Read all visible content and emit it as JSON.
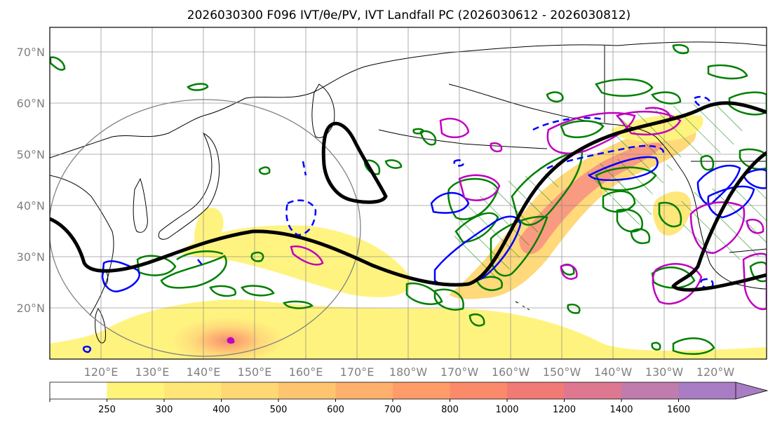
{
  "figure": {
    "title": "2026030300 F096 IVT/θe/PV, IVT Landfall PC (2026030612 - 2026030812)",
    "lat_labels": [
      "70°N",
      "60°N",
      "50°N",
      "40°N",
      "30°N",
      "20°N"
    ],
    "lat_values": [
      70,
      60,
      50,
      40,
      30,
      20
    ],
    "lon_labels": [
      "120°E",
      "130°E",
      "140°E",
      "150°E",
      "160°E",
      "170°E",
      "180°W",
      "170°W",
      "160°W",
      "150°W",
      "140°W",
      "130°W",
      "120°W"
    ],
    "lon_values": [
      120,
      130,
      140,
      150,
      160,
      170,
      180,
      190,
      200,
      210,
      220,
      230,
      240
    ],
    "map_extent": {
      "lon_min": 110,
      "lon_max": 250,
      "lat_min": 10,
      "lat_max": 75
    }
  },
  "colorbar": {
    "ticks": [
      "250",
      "300",
      "400",
      "500",
      "600",
      "700",
      "800",
      "1000",
      "1200",
      "1400",
      "1600"
    ],
    "colors": [
      "#ffffff",
      "#fff37a",
      "#ffe676",
      "#ffd873",
      "#ffc46f",
      "#ffb06c",
      "#ff9c69",
      "#fb8a6b",
      "#f17a74",
      "#dd7890",
      "#bf7cac",
      "#a97dc3"
    ]
  },
  "layers": {
    "ivt_fill_color": "#ffcc66",
    "jet_color": "#000000",
    "theta_e_color": "#0000ff",
    "pv_color": "#007f00",
    "landfall_pc_color": "#bf00bf",
    "coastline_color": "#000000",
    "circle_color": "#808080"
  }
}
